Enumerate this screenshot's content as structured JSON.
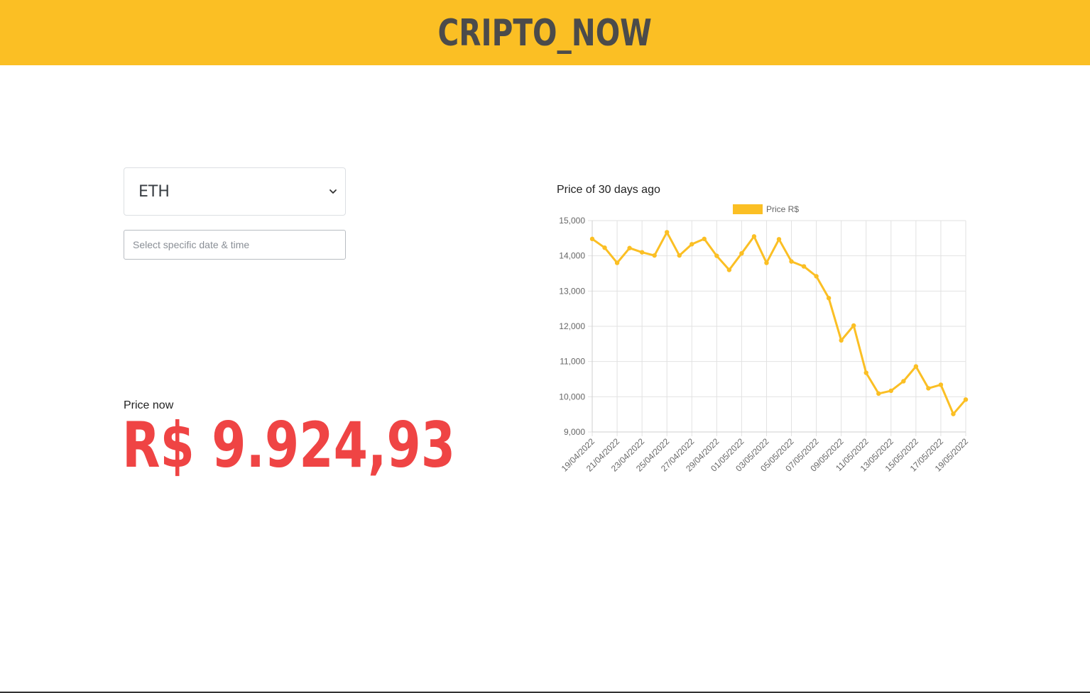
{
  "header": {
    "brand": "CRIPTO_NOW",
    "background_color": "#fbbf24",
    "text_color": "#4b4b4b"
  },
  "controls": {
    "coin_select": {
      "selected": "ETH",
      "icon": "chevron-down-icon"
    },
    "date_input": {
      "placeholder": "Select specific date & time",
      "value": ""
    }
  },
  "price": {
    "label": "Price now",
    "value": "R$ 9.924,93",
    "color": "#ef4444"
  },
  "chart": {
    "title": "Price of 30 days ago"
  },
  "chart_data": {
    "type": "line",
    "series": [
      {
        "name": "Price R$",
        "color": "#fbbf24",
        "values": [
          14480,
          14230,
          13800,
          14220,
          14100,
          14010,
          14670,
          14010,
          14330,
          14480,
          14000,
          13600,
          14070,
          14550,
          13800,
          14470,
          13840,
          13700,
          13420,
          12800,
          11600,
          12020,
          10680,
          10090,
          10170,
          10440,
          10860,
          10240,
          10340,
          9510,
          9920
        ]
      }
    ],
    "x": [
      "19/04/2022",
      "20/04/2022",
      "21/04/2022",
      "22/04/2022",
      "23/04/2022",
      "24/04/2022",
      "25/04/2022",
      "26/04/2022",
      "27/04/2022",
      "28/04/2022",
      "29/04/2022",
      "30/04/2022",
      "01/05/2022",
      "02/05/2022",
      "03/05/2022",
      "04/05/2022",
      "05/05/2022",
      "06/05/2022",
      "07/05/2022",
      "08/05/2022",
      "09/05/2022",
      "10/05/2022",
      "11/05/2022",
      "12/05/2022",
      "13/05/2022",
      "14/05/2022",
      "15/05/2022",
      "16/05/2022",
      "17/05/2022",
      "18/05/2022",
      "19/05/2022"
    ],
    "x_tick_labels": [
      "19/04/2022",
      "21/04/2022",
      "23/04/2022",
      "25/04/2022",
      "27/04/2022",
      "29/04/2022",
      "01/05/2022",
      "03/05/2022",
      "05/05/2022",
      "07/05/2022",
      "09/05/2022",
      "11/05/2022",
      "13/05/2022",
      "15/05/2022",
      "17/05/2022",
      "19/05/2022"
    ],
    "y_ticks": [
      "9,000",
      "10,000",
      "11,000",
      "12,000",
      "13,000",
      "14,000",
      "15,000"
    ],
    "ylim": [
      9000,
      15000
    ],
    "grid": true,
    "legend": "top-center"
  }
}
